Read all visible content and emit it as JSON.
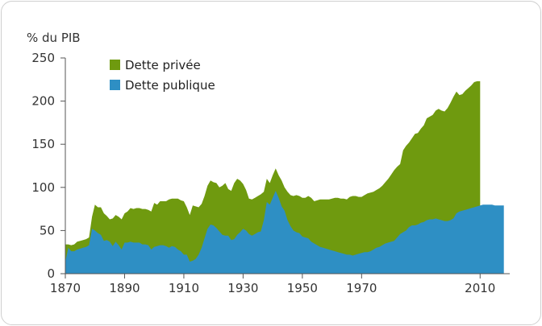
{
  "chart_data": {
    "type": "area",
    "stacked": true,
    "ylabel": "% du PIB",
    "xlabel": "",
    "xlim": [
      1870,
      2020
    ],
    "ylim": [
      0,
      250
    ],
    "yticks": [
      0,
      50,
      100,
      150,
      200,
      250
    ],
    "xticks": [
      1870,
      1890,
      1910,
      1930,
      1950,
      1970,
      2010
    ],
    "grid": false,
    "legend_position": "top-left",
    "series": [
      {
        "name": "Dette publique",
        "color": "#2e8fc4",
        "points": [
          [
            1870,
            14
          ],
          [
            1871,
            30
          ],
          [
            1872,
            26
          ],
          [
            1873,
            26
          ],
          [
            1874,
            28
          ],
          [
            1875,
            29
          ],
          [
            1876,
            30
          ],
          [
            1877,
            31
          ],
          [
            1878,
            33
          ],
          [
            1879,
            52
          ],
          [
            1880,
            50
          ],
          [
            1881,
            47
          ],
          [
            1882,
            45
          ],
          [
            1883,
            38
          ],
          [
            1884,
            39
          ],
          [
            1885,
            37
          ],
          [
            1886,
            32
          ],
          [
            1887,
            37
          ],
          [
            1888,
            33
          ],
          [
            1889,
            28
          ],
          [
            1890,
            36
          ],
          [
            1891,
            36
          ],
          [
            1892,
            37
          ],
          [
            1893,
            36
          ],
          [
            1894,
            36
          ],
          [
            1895,
            36
          ],
          [
            1896,
            34
          ],
          [
            1897,
            34
          ],
          [
            1898,
            33
          ],
          [
            1899,
            28
          ],
          [
            1900,
            31
          ],
          [
            1901,
            32
          ],
          [
            1902,
            33
          ],
          [
            1903,
            33
          ],
          [
            1904,
            32
          ],
          [
            1905,
            30
          ],
          [
            1906,
            32
          ],
          [
            1907,
            31
          ],
          [
            1908,
            28
          ],
          [
            1909,
            26
          ],
          [
            1910,
            22
          ],
          [
            1911,
            22
          ],
          [
            1912,
            14
          ],
          [
            1913,
            15
          ],
          [
            1914,
            17
          ],
          [
            1915,
            22
          ],
          [
            1916,
            30
          ],
          [
            1917,
            41
          ],
          [
            1918,
            52
          ],
          [
            1919,
            57
          ],
          [
            1920,
            56
          ],
          [
            1921,
            53
          ],
          [
            1922,
            49
          ],
          [
            1923,
            45
          ],
          [
            1924,
            44
          ],
          [
            1925,
            44
          ],
          [
            1926,
            39
          ],
          [
            1927,
            40
          ],
          [
            1928,
            45
          ],
          [
            1929,
            48
          ],
          [
            1930,
            52
          ],
          [
            1931,
            50
          ],
          [
            1932,
            46
          ],
          [
            1933,
            44
          ],
          [
            1934,
            46
          ],
          [
            1935,
            48
          ],
          [
            1936,
            49
          ],
          [
            1937,
            62
          ],
          [
            1938,
            83
          ],
          [
            1939,
            80
          ],
          [
            1940,
            88
          ],
          [
            1941,
            96
          ],
          [
            1942,
            88
          ],
          [
            1943,
            78
          ],
          [
            1944,
            73
          ],
          [
            1945,
            62
          ],
          [
            1946,
            55
          ],
          [
            1947,
            50
          ],
          [
            1948,
            48
          ],
          [
            1949,
            47
          ],
          [
            1950,
            43
          ],
          [
            1951,
            42
          ],
          [
            1952,
            41
          ],
          [
            1953,
            37
          ],
          [
            1954,
            35
          ],
          [
            1955,
            33
          ],
          [
            1956,
            31
          ],
          [
            1957,
            30
          ],
          [
            1958,
            29
          ],
          [
            1959,
            28
          ],
          [
            1960,
            27
          ],
          [
            1961,
            26
          ],
          [
            1962,
            25
          ],
          [
            1963,
            24
          ],
          [
            1964,
            23
          ],
          [
            1965,
            22
          ],
          [
            1966,
            22
          ],
          [
            1967,
            21
          ],
          [
            1968,
            22
          ],
          [
            1969,
            23
          ],
          [
            1970,
            24
          ],
          [
            1971,
            25
          ],
          [
            1972,
            25
          ],
          [
            1973,
            26
          ],
          [
            1974,
            28
          ],
          [
            1975,
            30
          ],
          [
            1976,
            31
          ],
          [
            1977,
            33
          ],
          [
            1978,
            35
          ],
          [
            1979,
            36
          ],
          [
            1980,
            37
          ],
          [
            1981,
            38
          ],
          [
            1982,
            42
          ],
          [
            1983,
            46
          ],
          [
            1984,
            48
          ],
          [
            1985,
            50
          ],
          [
            1986,
            54
          ],
          [
            1987,
            56
          ],
          [
            1988,
            56
          ],
          [
            1989,
            57
          ],
          [
            1990,
            59
          ],
          [
            1991,
            60
          ],
          [
            1992,
            62
          ],
          [
            1993,
            63
          ],
          [
            1994,
            63
          ],
          [
            1995,
            64
          ],
          [
            1996,
            63
          ],
          [
            1997,
            62
          ],
          [
            1998,
            61
          ],
          [
            1999,
            61
          ],
          [
            2000,
            62
          ],
          [
            2001,
            64
          ],
          [
            2002,
            70
          ],
          [
            2003,
            72
          ],
          [
            2004,
            73
          ],
          [
            2005,
            74
          ],
          [
            2006,
            75
          ],
          [
            2007,
            76
          ],
          [
            2008,
            77
          ],
          [
            2009,
            78
          ],
          [
            2010,
            79
          ],
          [
            2011,
            80
          ],
          [
            2012,
            80
          ],
          [
            2013,
            80
          ],
          [
            2014,
            80
          ],
          [
            2015,
            79
          ],
          [
            2016,
            79
          ],
          [
            2017,
            79
          ],
          [
            2018,
            79
          ]
        ]
      },
      {
        "name": "Dette privée",
        "color": "#6f9a0f",
        "points": [
          [
            1870,
            34
          ],
          [
            1871,
            34
          ],
          [
            1872,
            33
          ],
          [
            1873,
            34
          ],
          [
            1874,
            37
          ],
          [
            1875,
            38
          ],
          [
            1876,
            39
          ],
          [
            1877,
            40
          ],
          [
            1878,
            42
          ],
          [
            1879,
            66
          ],
          [
            1880,
            80
          ],
          [
            1881,
            77
          ],
          [
            1882,
            77
          ],
          [
            1883,
            70
          ],
          [
            1884,
            67
          ],
          [
            1885,
            63
          ],
          [
            1886,
            64
          ],
          [
            1887,
            68
          ],
          [
            1888,
            66
          ],
          [
            1889,
            63
          ],
          [
            1890,
            70
          ],
          [
            1891,
            72
          ],
          [
            1892,
            76
          ],
          [
            1893,
            75
          ],
          [
            1894,
            76
          ],
          [
            1895,
            76
          ],
          [
            1896,
            75
          ],
          [
            1897,
            75
          ],
          [
            1898,
            74
          ],
          [
            1899,
            72
          ],
          [
            1900,
            82
          ],
          [
            1901,
            80
          ],
          [
            1902,
            84
          ],
          [
            1903,
            84
          ],
          [
            1904,
            84
          ],
          [
            1905,
            86
          ],
          [
            1906,
            87
          ],
          [
            1907,
            87
          ],
          [
            1908,
            87
          ],
          [
            1909,
            85
          ],
          [
            1910,
            84
          ],
          [
            1911,
            77
          ],
          [
            1912,
            68
          ],
          [
            1913,
            79
          ],
          [
            1914,
            78
          ],
          [
            1915,
            77
          ],
          [
            1916,
            81
          ],
          [
            1917,
            90
          ],
          [
            1918,
            102
          ],
          [
            1919,
            108
          ],
          [
            1920,
            106
          ],
          [
            1921,
            105
          ],
          [
            1922,
            100
          ],
          [
            1923,
            102
          ],
          [
            1924,
            105
          ],
          [
            1925,
            98
          ],
          [
            1926,
            96
          ],
          [
            1927,
            105
          ],
          [
            1928,
            110
          ],
          [
            1929,
            108
          ],
          [
            1930,
            104
          ],
          [
            1931,
            97
          ],
          [
            1932,
            87
          ],
          [
            1933,
            86
          ],
          [
            1934,
            88
          ],
          [
            1935,
            90
          ],
          [
            1936,
            92
          ],
          [
            1937,
            95
          ],
          [
            1938,
            110
          ],
          [
            1939,
            105
          ],
          [
            1940,
            114
          ],
          [
            1941,
            122
          ],
          [
            1942,
            114
          ],
          [
            1943,
            108
          ],
          [
            1944,
            100
          ],
          [
            1945,
            95
          ],
          [
            1946,
            91
          ],
          [
            1947,
            90
          ],
          [
            1948,
            91
          ],
          [
            1949,
            90
          ],
          [
            1950,
            88
          ],
          [
            1951,
            88
          ],
          [
            1952,
            90
          ],
          [
            1953,
            88
          ],
          [
            1954,
            84
          ],
          [
            1955,
            85
          ],
          [
            1956,
            86
          ],
          [
            1957,
            86
          ],
          [
            1958,
            86
          ],
          [
            1959,
            86
          ],
          [
            1960,
            87
          ],
          [
            1961,
            88
          ],
          [
            1962,
            88
          ],
          [
            1963,
            87
          ],
          [
            1964,
            87
          ],
          [
            1965,
            86
          ],
          [
            1966,
            89
          ],
          [
            1967,
            90
          ],
          [
            1968,
            90
          ],
          [
            1969,
            89
          ],
          [
            1970,
            89
          ],
          [
            1971,
            91
          ],
          [
            1972,
            93
          ],
          [
            1973,
            94
          ],
          [
            1974,
            95
          ],
          [
            1975,
            97
          ],
          [
            1976,
            99
          ],
          [
            1977,
            102
          ],
          [
            1978,
            106
          ],
          [
            1979,
            110
          ],
          [
            1980,
            115
          ],
          [
            1981,
            120
          ],
          [
            1982,
            124
          ],
          [
            1983,
            127
          ],
          [
            1984,
            143
          ],
          [
            1985,
            148
          ],
          [
            1986,
            152
          ],
          [
            1987,
            157
          ],
          [
            1988,
            162
          ],
          [
            1989,
            163
          ],
          [
            1990,
            168
          ],
          [
            1991,
            172
          ],
          [
            1992,
            180
          ],
          [
            1993,
            182
          ],
          [
            1994,
            184
          ],
          [
            1995,
            189
          ],
          [
            1996,
            191
          ],
          [
            1997,
            189
          ],
          [
            1998,
            188
          ],
          [
            1999,
            192
          ],
          [
            2000,
            198
          ],
          [
            2001,
            205
          ],
          [
            2002,
            211
          ],
          [
            2003,
            207
          ],
          [
            2004,
            208
          ],
          [
            2005,
            212
          ],
          [
            2006,
            215
          ],
          [
            2007,
            218
          ],
          [
            2008,
            222
          ],
          [
            2009,
            223
          ],
          [
            2010,
            223
          ]
        ]
      }
    ]
  }
}
